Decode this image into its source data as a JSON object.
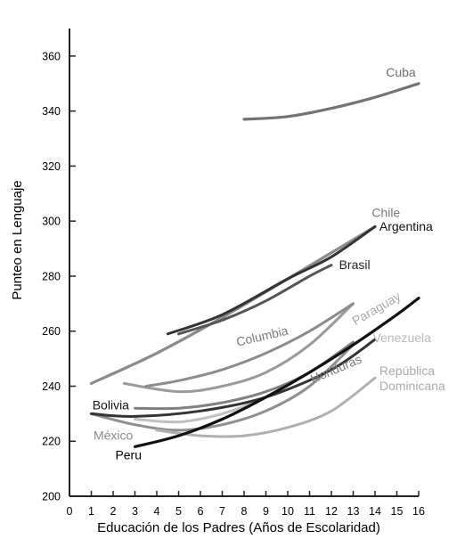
{
  "chart_data": {
    "type": "line",
    "title": "",
    "xlabel": "Educación de los Padres (Años de Escolaridad)",
    "ylabel": "Punteo en Lenguaje",
    "xlim": [
      0,
      16
    ],
    "ylim": [
      200,
      370
    ],
    "x_ticks": [
      0,
      1,
      2,
      3,
      4,
      5,
      6,
      7,
      8,
      9,
      10,
      11,
      12,
      13,
      14,
      15,
      16
    ],
    "y_ticks": [
      200,
      220,
      240,
      260,
      280,
      300,
      320,
      340,
      360
    ],
    "grid": false,
    "legend": "none",
    "series": [
      {
        "name": "Cuba",
        "color": "#737373",
        "width": 3.2,
        "points": [
          [
            8,
            337
          ],
          [
            10,
            338
          ],
          [
            12,
            341
          ],
          [
            14,
            345
          ],
          [
            16,
            350
          ]
        ],
        "label": {
          "text": "Cuba",
          "color": "#6e6e6e"
        }
      },
      {
        "name": "Chile",
        "color": "#8a8a8a",
        "width": 3.2,
        "points": [
          [
            1,
            241
          ],
          [
            4,
            252
          ],
          [
            7,
            265
          ],
          [
            10,
            279
          ],
          [
            14,
            298
          ]
        ],
        "label": {
          "text": "Chile",
          "color": "#7a7a7a"
        }
      },
      {
        "name": "Argentina",
        "color": "#333333",
        "width": 3,
        "points": [
          [
            4.5,
            259
          ],
          [
            7,
            266
          ],
          [
            10,
            279
          ],
          [
            12,
            287
          ],
          [
            14,
            298
          ]
        ],
        "label": {
          "text": "Argentina",
          "color": "#111111"
        }
      },
      {
        "name": "Brasil",
        "color": "#555555",
        "width": 3,
        "points": [
          [
            5,
            259
          ],
          [
            7,
            264
          ],
          [
            9,
            271
          ],
          [
            11,
            280
          ],
          [
            12,
            284
          ]
        ],
        "label": {
          "text": "Brasil",
          "color": "#222222"
        }
      },
      {
        "name": "Paraguay",
        "color": "#9a9a9a",
        "width": 3,
        "points": [
          [
            2.5,
            241
          ],
          [
            5,
            238
          ],
          [
            7,
            240
          ],
          [
            9,
            245
          ],
          [
            11,
            255
          ],
          [
            13,
            270
          ]
        ],
        "label": {
          "text": "Paraguay",
          "color": "#a8a8a8"
        }
      },
      {
        "name": "Columbia",
        "color": "#8c8c8c",
        "width": 3,
        "points": [
          [
            3.5,
            240
          ],
          [
            5,
            242
          ],
          [
            7,
            246
          ],
          [
            9,
            252
          ],
          [
            11,
            260
          ],
          [
            13,
            270
          ]
        ],
        "label": {
          "text": "Columbia",
          "color": "#7a7a7a"
        }
      },
      {
        "name": "Venezuela",
        "color": "#c0c0c0",
        "width": 3,
        "points": [
          [
            3,
            228
          ],
          [
            5,
            227
          ],
          [
            7,
            230
          ],
          [
            9,
            236
          ],
          [
            11,
            245
          ],
          [
            13,
            256
          ]
        ],
        "label": {
          "text": "Venezuela",
          "color": "#b8b8b8"
        }
      },
      {
        "name": "Honduras",
        "color": "#8f8f8f",
        "width": 3,
        "points": [
          [
            1,
            230
          ],
          [
            3,
            226
          ],
          [
            5,
            224
          ],
          [
            7,
            226
          ],
          [
            9,
            231
          ],
          [
            11,
            240
          ],
          [
            13,
            255
          ]
        ],
        "label": {
          "text": "Honduras",
          "color": "#7a7a7a"
        }
      },
      {
        "name": "República Dominicana",
        "color": "#b0b0b0",
        "width": 3,
        "points": [
          [
            4,
            224
          ],
          [
            6,
            222
          ],
          [
            8,
            222
          ],
          [
            10,
            225
          ],
          [
            12,
            231
          ],
          [
            14,
            243
          ]
        ],
        "label": {
          "text": "República Dominicana",
          "color": "#aaaaaa"
        }
      },
      {
        "name": "Bolivia",
        "color": "#333333",
        "width": 3,
        "points": [
          [
            1,
            230
          ],
          [
            3,
            229
          ],
          [
            6,
            231
          ],
          [
            9,
            236
          ],
          [
            12,
            246
          ],
          [
            14,
            257
          ]
        ],
        "label": {
          "text": "Bolivia",
          "color": "#111111"
        }
      },
      {
        "name": "México",
        "color": "#808080",
        "width": 3,
        "points": [
          [
            3,
            232
          ],
          [
            5,
            232
          ],
          [
            7,
            234
          ],
          [
            9,
            238
          ],
          [
            11,
            245
          ],
          [
            13,
            256
          ]
        ],
        "label": {
          "text": "México",
          "color": "#8a8a8a"
        }
      },
      {
        "name": "Peru",
        "color": "#111111",
        "width": 3.2,
        "points": [
          [
            3,
            218
          ],
          [
            5,
            222
          ],
          [
            7,
            228
          ],
          [
            9,
            236
          ],
          [
            11,
            245
          ],
          [
            13,
            255
          ],
          [
            15,
            266
          ],
          [
            16,
            272
          ]
        ],
        "label": {
          "text": "Peru",
          "color": "#000000"
        }
      }
    ]
  }
}
